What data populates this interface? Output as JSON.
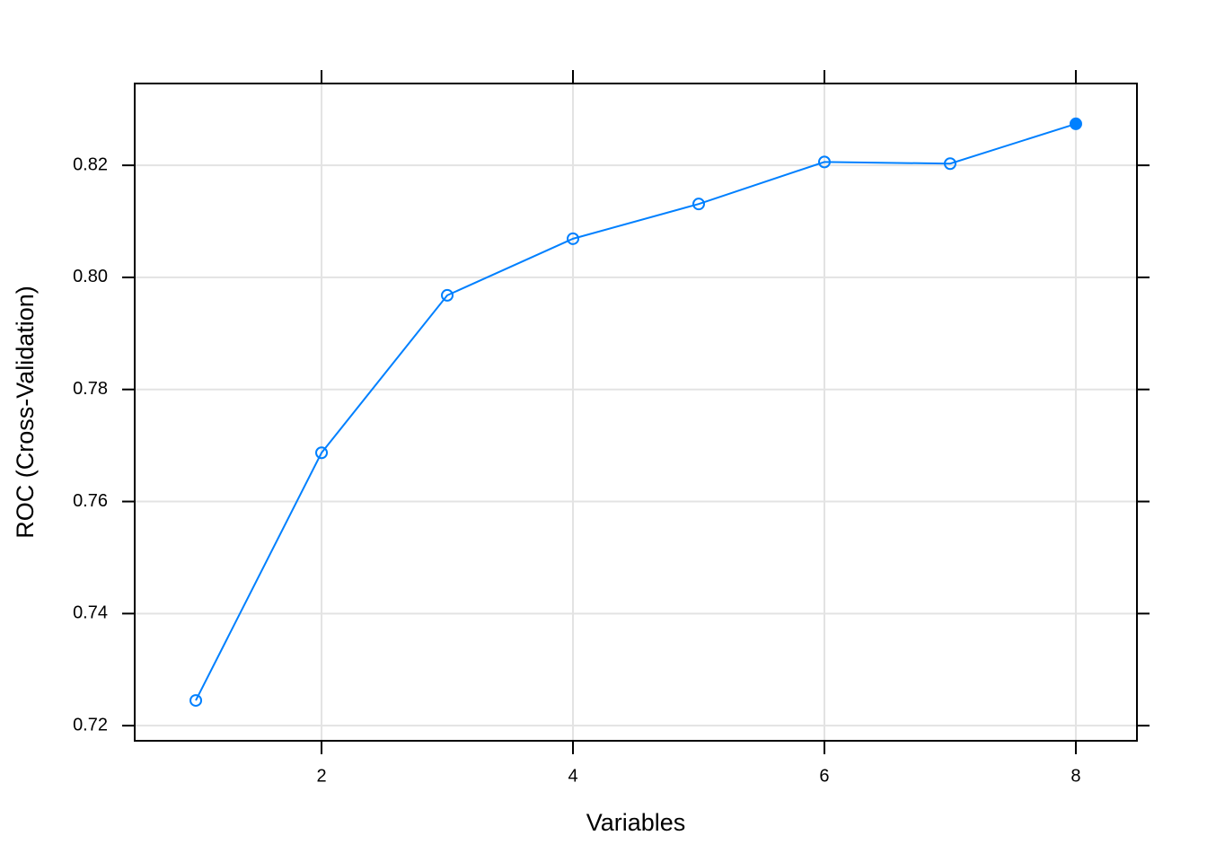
{
  "chart_data": {
    "type": "line",
    "x_label": "Variables",
    "y_label": "ROC (Cross-Validation)",
    "x": [
      1,
      2,
      3,
      4,
      5,
      6,
      7,
      8
    ],
    "series": [
      {
        "color": "#0080ff",
        "values": [
          0.7245,
          0.7687,
          0.7968,
          0.8069,
          0.8131,
          0.8206,
          0.8203,
          0.8274
        ]
      }
    ],
    "xlim": [
      0.514,
      8.486
    ],
    "xticks": [
      2,
      4,
      6,
      8
    ],
    "ylim": [
      0.7173,
      0.8346
    ],
    "yticks": [
      0.72,
      0.74,
      0.76,
      0.78,
      {
        "value": 0.8,
        "label": "0.80"
      },
      0.82
    ],
    "grid": true
  }
}
